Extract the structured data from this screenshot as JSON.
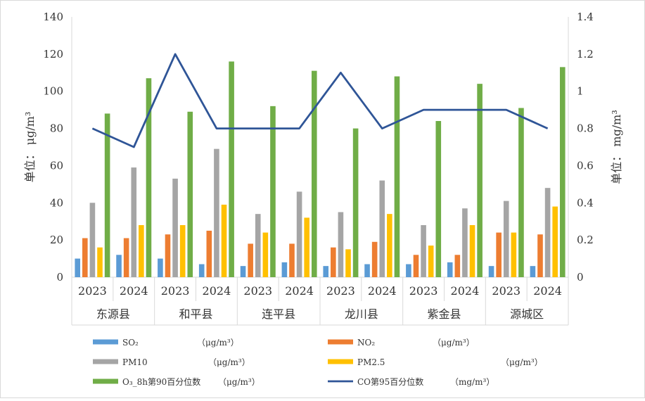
{
  "chart_data": {
    "type": "bar",
    "groups": [
      "东源县",
      "和平县",
      "连平县",
      "龙川县",
      "紫金县",
      "源城区"
    ],
    "years": [
      "2023",
      "2024"
    ],
    "categories": [
      "东源县 2023",
      "东源县 2024",
      "和平县 2023",
      "和平县 2024",
      "连平县 2023",
      "连平县 2024",
      "龙川县 2023",
      "龙川县 2024",
      "紫金县 2023",
      "紫金县 2024",
      "源城区 2023",
      "源城区 2024"
    ],
    "ylabel": "单位： μg/m³",
    "y2label": "单位： mg/m³",
    "ylim": [
      0,
      140
    ],
    "y2lim": [
      0,
      1.4
    ],
    "yticks": [
      "0",
      "20",
      "40",
      "60",
      "80",
      "100",
      "120",
      "140"
    ],
    "y2ticks": [
      "0",
      "0.2",
      "0.4",
      "0.6",
      "0.8",
      "1",
      "1.2",
      "1.4"
    ],
    "grid": false,
    "legend_position": "bottom",
    "series": [
      {
        "name": "SO₂",
        "unit": "（μg/m³）",
        "type": "bar",
        "axis": "left",
        "color": "#5B9BD5",
        "values": [
          10,
          12,
          10,
          7,
          6,
          8,
          6,
          7,
          7,
          8,
          6,
          6
        ]
      },
      {
        "name": "NO₂",
        "unit": "（μg/m³）",
        "type": "bar",
        "axis": "left",
        "color": "#ED7D31",
        "values": [
          21,
          21,
          23,
          25,
          18,
          18,
          16,
          19,
          12,
          12,
          24,
          23
        ]
      },
      {
        "name": "PM10",
        "unit": "（μg/m³）",
        "type": "bar",
        "axis": "left",
        "color": "#A5A5A5",
        "values": [
          40,
          59,
          53,
          69,
          34,
          46,
          35,
          52,
          28,
          37,
          41,
          48
        ]
      },
      {
        "name": "PM2.5",
        "unit": "（μg/m³）",
        "type": "bar",
        "axis": "left",
        "color": "#FFC000",
        "values": [
          16,
          28,
          28,
          39,
          24,
          32,
          15,
          34,
          17,
          28,
          24,
          38
        ]
      },
      {
        "name": "O₃_8h第90百分位数",
        "unit": "（μg/m³）",
        "type": "bar",
        "axis": "left",
        "color": "#70AD47",
        "values": [
          88,
          107,
          89,
          116,
          92,
          111,
          80,
          108,
          84,
          104,
          91,
          113
        ]
      },
      {
        "name": "CO第95百分位数",
        "unit": "（mg/m³）",
        "type": "line",
        "axis": "right",
        "color": "#2F5597",
        "values": [
          0.8,
          0.7,
          1.2,
          0.8,
          0.8,
          0.8,
          1.1,
          0.8,
          0.9,
          0.9,
          0.9,
          0.8
        ]
      }
    ]
  }
}
